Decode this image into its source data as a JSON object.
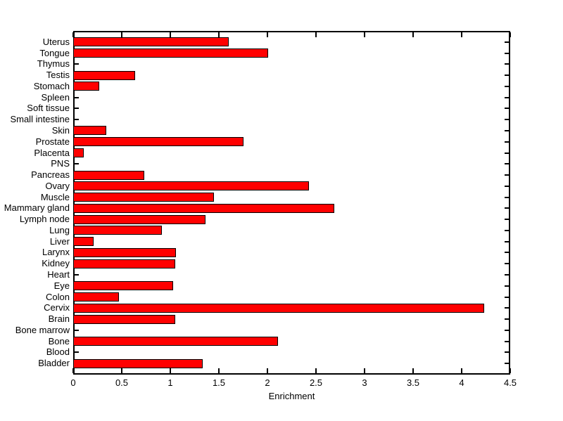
{
  "figure": {
    "background": "#ffffff"
  },
  "chart_data": {
    "type": "bar",
    "orientation": "horizontal",
    "title": "",
    "xlabel": "Enrichment",
    "ylabel": "",
    "xlim": [
      0,
      4.5
    ],
    "xtick_labels": [
      "0",
      "0.5",
      "1",
      "1.5",
      "2",
      "2.5",
      "3",
      "3.5",
      "4",
      "4.5"
    ],
    "grid": false,
    "legend": null,
    "bar_color": "#ff0000",
    "bar_edge_color": "#000000",
    "axis_color": "#000000",
    "categories": [
      "Uterus",
      "Tongue",
      "Thymus",
      "Testis",
      "Stomach",
      "Spleen",
      "Soft tissue",
      "Small intestine",
      "Skin",
      "Prostate",
      "Placenta",
      "PNS",
      "Pancreas",
      "Ovary",
      "Muscle",
      "Mammary gland",
      "Lymph node",
      "Lung",
      "Liver",
      "Larynx",
      "Kidney",
      "Heart",
      "Eye",
      "Colon",
      "Cervix",
      "Brain",
      "Bone marrow",
      "Bone",
      "Blood",
      "Bladder"
    ],
    "values": [
      1.6,
      2.01,
      0,
      0.64,
      0.27,
      0,
      0,
      0,
      0.34,
      1.75,
      0.11,
      0,
      0.73,
      2.43,
      1.45,
      2.69,
      1.36,
      0.91,
      0.21,
      1.06,
      1.05,
      0,
      1.03,
      0.47,
      4.23,
      1.05,
      0,
      2.11,
      0,
      1.33
    ]
  }
}
